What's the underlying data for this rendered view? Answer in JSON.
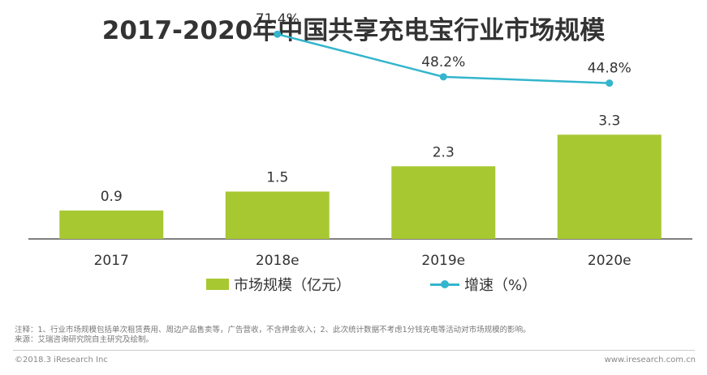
{
  "title": "2017-2020年中国共享充电宝行业市场规模",
  "colors": {
    "bar": "#a8c832",
    "line": "#33b5cc",
    "axis": "#555555",
    "text": "#333333"
  },
  "chart_data": {
    "type": "bar",
    "title": "2017-2020年中国共享充电宝行业市场规模",
    "categories": [
      "2017",
      "2018e",
      "2019e",
      "2020e"
    ],
    "series": [
      {
        "name": "市场规模（亿元）",
        "type": "bar",
        "values": [
          0.9,
          1.5,
          2.3,
          3.3
        ],
        "labels": [
          "0.9",
          "1.5",
          "2.3",
          "3.3"
        ]
      },
      {
        "name": "增速（%）",
        "type": "line",
        "values": [
          null,
          71.4,
          48.2,
          44.8
        ],
        "labels": [
          "",
          "71.4%",
          "48.2%",
          "44.8%"
        ]
      }
    ],
    "bar_ylim": [
      0,
      4.3
    ],
    "line_ylim": [
      -40,
      90
    ],
    "legend_position": "bottom"
  },
  "legend": {
    "bar_label": "市场规模（亿元）",
    "line_label": "增速（%）"
  },
  "note_lines": [
    "注释：1、行业市场规模包括单次租赁费用、周边产品售卖等，广告营收，不含押金收入；2、此次统计数据不考虑1分钱充电等活动对市场规模的影响。",
    "来源：艾瑞咨询研究院自主研究及绘制。"
  ],
  "footer": {
    "left": "©2018.3 iResearch Inc",
    "right": "www.iresearch.com.cn"
  }
}
